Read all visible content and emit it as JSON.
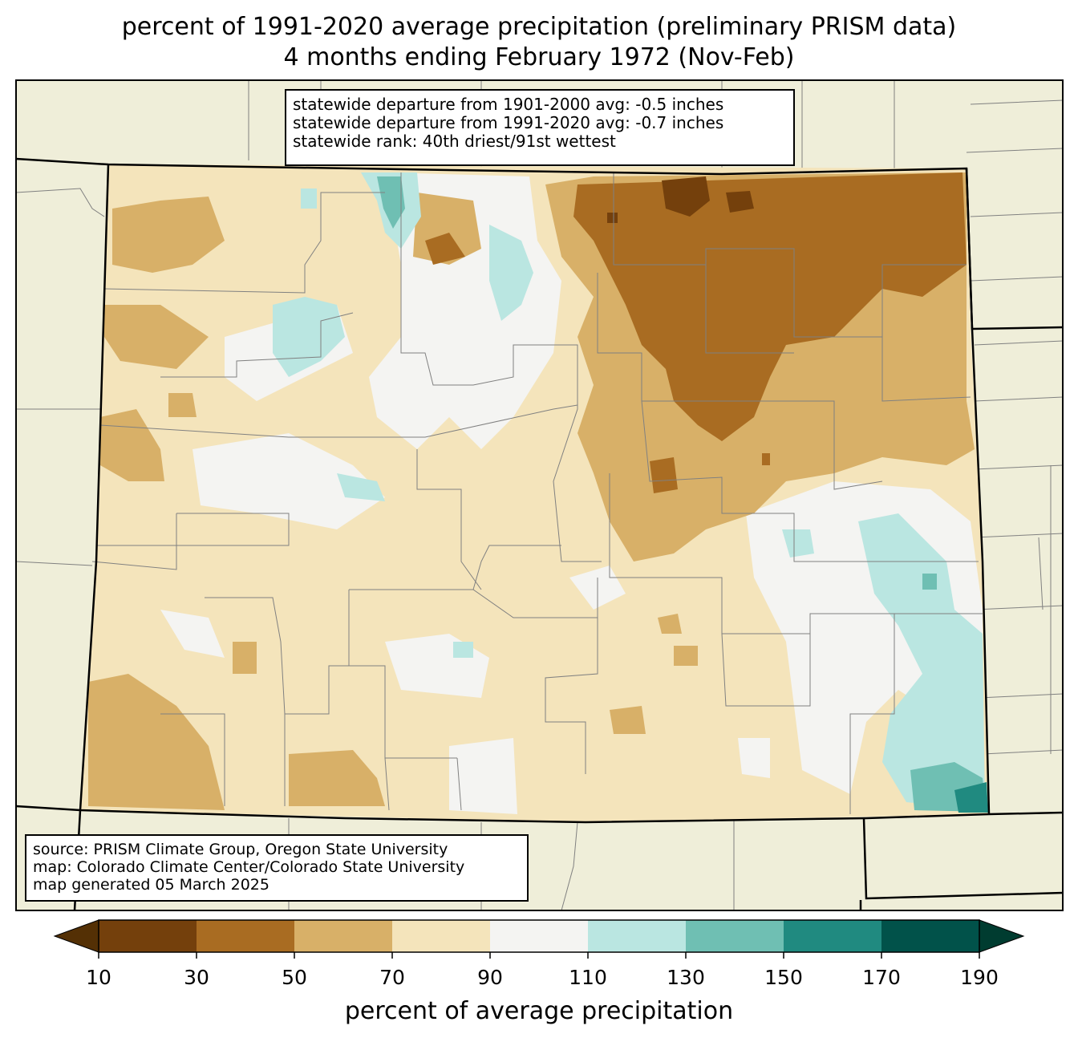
{
  "title": {
    "line1": "percent of 1991-2020 average precipitation (preliminary PRISM data)",
    "line2": "4 months ending February 1972 (Nov-Feb)"
  },
  "stats": {
    "line1": "statewide departure from 1901-2000 avg: -0.5 inches",
    "line2": "statewide departure from 1991-2020 avg: -0.7 inches",
    "line3": "statewide rank: 40th driest/91st wettest"
  },
  "source": {
    "line1": "source: PRISM Climate Group, Oregon State University",
    "line2": "map: Colorado Climate Center/Colorado State University",
    "line3": "map generated 05 March 2025"
  },
  "colorbar": {
    "label": "percent of average precipitation",
    "ticks": [
      "10",
      "30",
      "50",
      "70",
      "90",
      "110",
      "130",
      "150",
      "170",
      "190"
    ],
    "bin_colors": [
      "#74400c",
      "#a96c22",
      "#d8b068",
      "#f4e4bb",
      "#f4f4f2",
      "#bae6e1",
      "#6fbfb3",
      "#208a80",
      "#01524a"
    ],
    "under_color": "#543005",
    "over_color": "#003c30"
  },
  "colors": {
    "background_land": "#efeed9",
    "state_border": "#000000",
    "county_lines": "#808080"
  }
}
